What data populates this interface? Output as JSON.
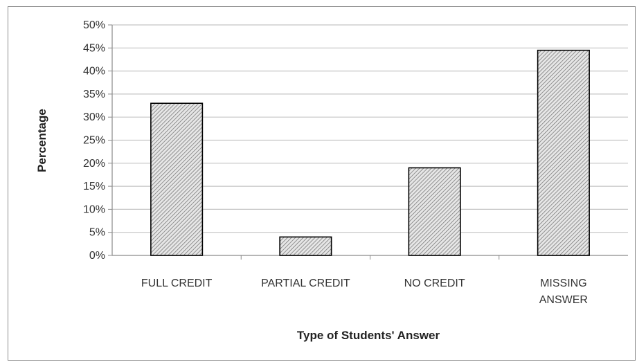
{
  "chart_data": {
    "type": "bar",
    "categories": [
      [
        "FULL CREDIT"
      ],
      [
        "PARTIAL CREDIT"
      ],
      [
        "NO CREDIT"
      ],
      [
        "MISSING",
        "ANSWER"
      ]
    ],
    "values": [
      0.33,
      0.04,
      0.19,
      0.445
    ],
    "xlabel": "Type of Students' Answer",
    "ylabel": "Percentage",
    "ylim": [
      0,
      0.5
    ],
    "yticks": [
      "0%",
      "5%",
      "10%",
      "15%",
      "20%",
      "25%",
      "30%",
      "35%",
      "40%",
      "45%",
      "50%"
    ],
    "grid": true,
    "legend": "none",
    "bar_fill": "hatched-gray",
    "colors": {
      "bar_stroke": "#000000",
      "hatch_light": "#e6e6e6",
      "hatch_dark": "#7a7a7a",
      "grid": "#c4c4c4",
      "axis": "#8a8a8a"
    }
  }
}
